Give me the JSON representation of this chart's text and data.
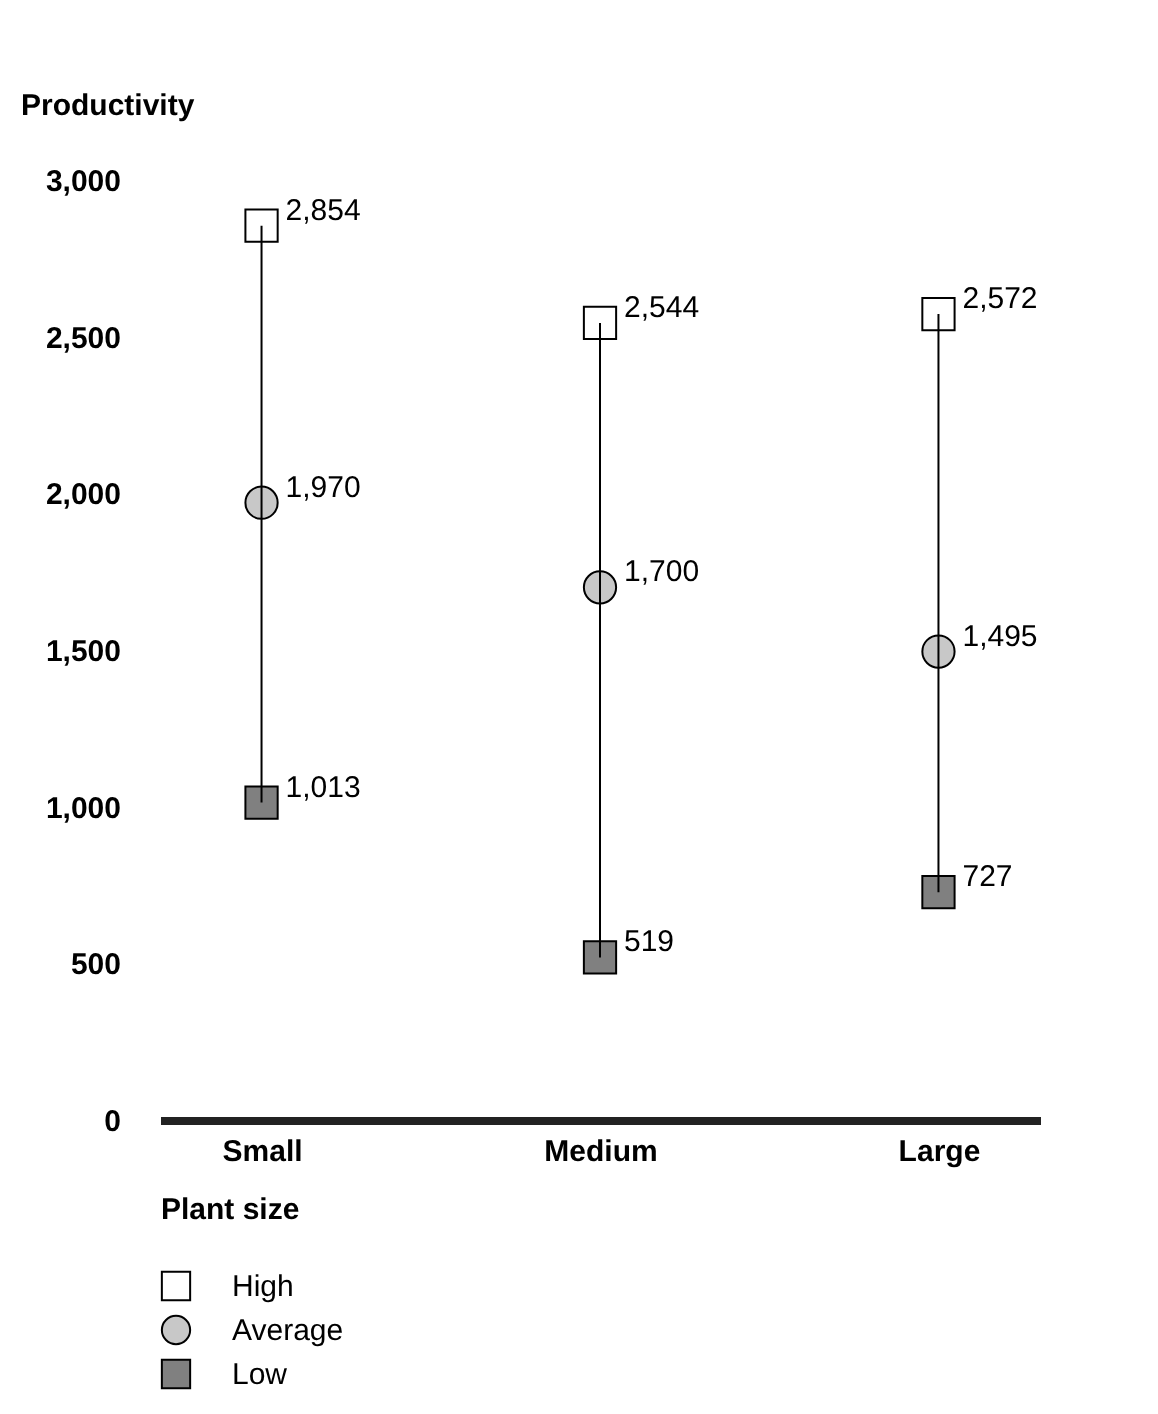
{
  "chart_data": {
    "type": "scatter",
    "xlabel": "Plant size",
    "ylabel": "Productivity",
    "categories": [
      "Small",
      "Medium",
      "Large"
    ],
    "series": [
      {
        "name": "High",
        "color": "#ffffff",
        "marker": "square",
        "values": [
          2854,
          2544,
          2572
        ],
        "value_labels": [
          "2,854",
          "2,544",
          "2,572"
        ]
      },
      {
        "name": "Average",
        "color": "#c8c8c8",
        "marker": "circle",
        "values": [
          1970,
          1700,
          1495
        ],
        "value_labels": [
          "1,970",
          "1,700",
          "1,495"
        ]
      },
      {
        "name": "Low",
        "color": "#808080",
        "marker": "square",
        "values": [
          1013,
          519,
          727
        ],
        "value_labels": [
          "1,013",
          "519",
          "727"
        ]
      }
    ],
    "ylim": [
      0,
      3000
    ],
    "yticks": [
      0,
      {
        "value": 500,
        "label": "500"
      },
      {
        "value": 1000,
        "label": "1,000"
      },
      {
        "value": 1500,
        "label": "1,500"
      },
      {
        "value": 2000,
        "label": "2,000"
      },
      {
        "value": 2500,
        "label": "2,500"
      },
      {
        "value": 3000,
        "label": "3,000"
      }
    ],
    "grid": false,
    "legend": "bottom left"
  }
}
